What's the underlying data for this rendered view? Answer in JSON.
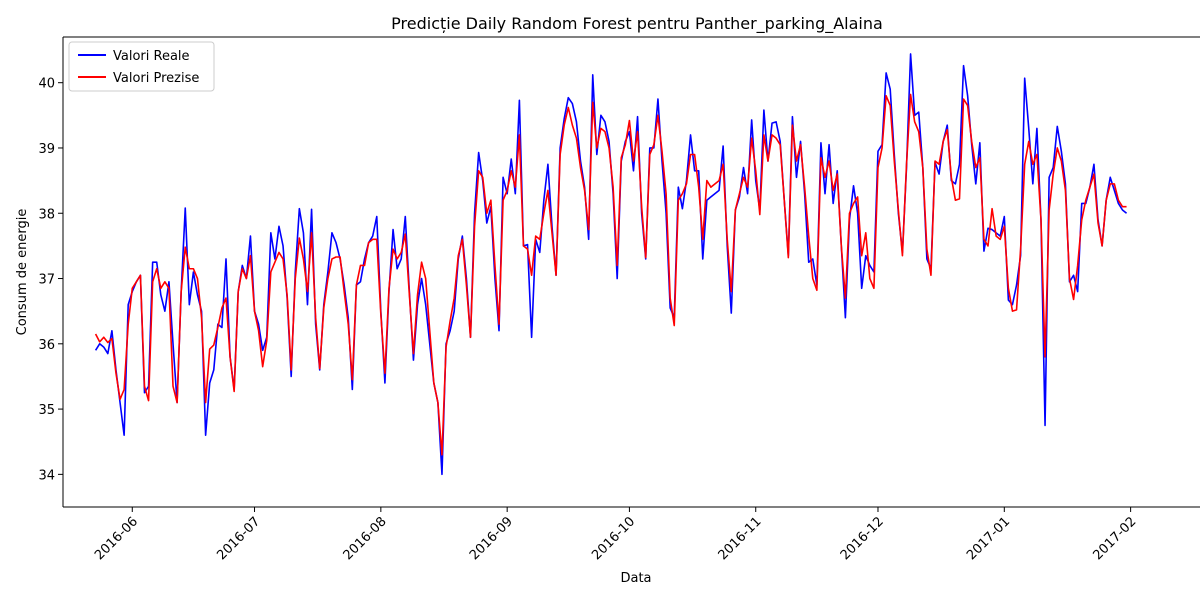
{
  "chart_data": {
    "type": "line",
    "title": "Predicție Daily Random Forest pentru Panther_parking_Alaina",
    "xlabel": "Data",
    "ylabel": "Consum de energie",
    "x_start": "2016-05-23",
    "x_end": "2017-01-27",
    "xlim": [
      "2016-05-15",
      "2017-02-06"
    ],
    "ylim": [
      33.5,
      40.7
    ],
    "x_ticks": [
      "2016-06",
      "2016-07",
      "2016-08",
      "2016-09",
      "2016-10",
      "2016-11",
      "2016-12",
      "2017-01",
      "2017-02"
    ],
    "x_ticks_dates": [
      "2016-06-01",
      "2016-07-01",
      "2016-08-01",
      "2016-09-01",
      "2016-10-01",
      "2016-11-01",
      "2016-12-01",
      "2017-01-01",
      "2017-02-01"
    ],
    "y_ticks": [
      34,
      35,
      36,
      37,
      38,
      39,
      40
    ],
    "grid": false,
    "legend_position": "top-left",
    "series": [
      {
        "name": "Valori Reale",
        "color": "#0000ff",
        "values": [
          35.9,
          36.0,
          35.95,
          35.85,
          36.2,
          35.6,
          35.1,
          34.6,
          36.6,
          36.8,
          36.95,
          37.05,
          35.25,
          35.35,
          37.25,
          37.25,
          36.75,
          36.5,
          36.95,
          36.0,
          35.1,
          36.8,
          38.08,
          36.6,
          37.1,
          36.75,
          36.5,
          34.6,
          35.4,
          35.6,
          36.3,
          36.25,
          37.3,
          35.8,
          35.3,
          36.8,
          37.2,
          37.0,
          37.65,
          36.5,
          36.3,
          35.9,
          36.1,
          37.7,
          37.3,
          37.8,
          37.5,
          36.7,
          35.5,
          37.1,
          38.07,
          37.7,
          36.6,
          38.06,
          36.3,
          35.6,
          36.6,
          37.1,
          37.7,
          37.55,
          37.3,
          36.9,
          36.4,
          35.3,
          36.9,
          36.95,
          37.3,
          37.55,
          37.65,
          37.95,
          36.5,
          35.4,
          36.8,
          37.75,
          37.15,
          37.3,
          37.95,
          36.8,
          35.75,
          36.6,
          37.0,
          36.6,
          36.0,
          35.4,
          35.1,
          34.0,
          36.0,
          36.2,
          36.5,
          37.3,
          37.65,
          37.0,
          36.1,
          38.0,
          38.93,
          38.5,
          37.85,
          38.1,
          37.0,
          36.2,
          38.55,
          38.3,
          38.83,
          38.3,
          39.73,
          37.5,
          37.52,
          36.1,
          37.6,
          37.4,
          38.2,
          38.75,
          37.8,
          37.05,
          39.0,
          39.45,
          39.77,
          39.68,
          39.4,
          38.8,
          38.4,
          37.6,
          40.12,
          38.9,
          39.5,
          39.4,
          39.1,
          38.3,
          37.0,
          38.8,
          39.1,
          39.25,
          38.65,
          39.48,
          38.0,
          37.3,
          39.0,
          39.0,
          39.75,
          38.8,
          38.0,
          36.55,
          36.4,
          38.4,
          38.07,
          38.5,
          39.2,
          38.65,
          38.65,
          37.3,
          38.2,
          38.25,
          38.3,
          38.35,
          39.03,
          37.5,
          36.47,
          38.05,
          38.25,
          38.7,
          38.3,
          39.43,
          38.5,
          38.05,
          39.58,
          38.8,
          39.38,
          39.4,
          39.1,
          38.2,
          37.35,
          39.48,
          38.55,
          39.1,
          38.3,
          37.25,
          37.3,
          36.9,
          39.08,
          38.3,
          39.05,
          38.15,
          38.65,
          37.5,
          36.4,
          37.9,
          38.42,
          38.0,
          36.85,
          37.35,
          37.2,
          37.1,
          38.95,
          39.05,
          40.15,
          39.9,
          38.9,
          38.0,
          37.4,
          38.7,
          40.44,
          39.5,
          39.55,
          38.7,
          37.3,
          37.15,
          38.78,
          38.6,
          39.1,
          39.35,
          38.5,
          38.45,
          38.75,
          40.26,
          39.8,
          39.05,
          38.45,
          39.08,
          37.42,
          37.77,
          37.75,
          37.7,
          37.65,
          37.95,
          36.67,
          36.6,
          36.9,
          37.35,
          40.07,
          39.3,
          38.45,
          39.3,
          37.9,
          34.75,
          38.55,
          38.7,
          39.33,
          38.95,
          38.45,
          36.95,
          37.05,
          36.8,
          38.15,
          38.15,
          38.4,
          38.75,
          37.9,
          37.5,
          38.2,
          38.55,
          38.35,
          38.15,
          38.05,
          38.0
        ]
      },
      {
        "name": "Valori Prezise",
        "color": "#ff0000",
        "values": [
          36.15,
          36.03,
          36.1,
          36.02,
          36.08,
          35.55,
          35.15,
          35.3,
          36.3,
          36.85,
          36.95,
          37.05,
          35.35,
          35.13,
          36.95,
          37.15,
          36.85,
          36.95,
          36.85,
          35.35,
          35.1,
          36.8,
          37.48,
          37.15,
          37.15,
          37.0,
          36.4,
          35.1,
          35.92,
          35.98,
          36.25,
          36.55,
          36.7,
          35.8,
          35.27,
          36.8,
          37.15,
          37.0,
          37.35,
          36.5,
          36.2,
          35.65,
          36.05,
          37.1,
          37.25,
          37.4,
          37.3,
          36.75,
          35.6,
          37.0,
          37.62,
          37.3,
          36.8,
          37.7,
          36.4,
          35.62,
          36.55,
          37.0,
          37.3,
          37.33,
          37.33,
          36.8,
          36.3,
          35.45,
          36.9,
          37.2,
          37.2,
          37.55,
          37.6,
          37.6,
          36.45,
          35.55,
          36.85,
          37.45,
          37.3,
          37.4,
          37.68,
          36.75,
          35.85,
          36.75,
          37.25,
          37.0,
          36.2,
          35.4,
          35.1,
          34.3,
          35.95,
          36.35,
          36.7,
          37.35,
          37.6,
          36.9,
          36.1,
          37.8,
          38.65,
          38.55,
          38.0,
          38.2,
          37.2,
          36.3,
          38.2,
          38.35,
          38.65,
          38.4,
          39.2,
          37.5,
          37.45,
          37.05,
          37.65,
          37.6,
          38.0,
          38.35,
          37.7,
          37.05,
          38.9,
          39.35,
          39.62,
          39.35,
          39.15,
          38.7,
          38.35,
          37.75,
          39.7,
          39.0,
          39.3,
          39.25,
          39.0,
          38.4,
          37.2,
          38.85,
          39.05,
          39.42,
          38.8,
          39.25,
          38.1,
          37.32,
          38.9,
          39.05,
          39.5,
          38.95,
          38.3,
          36.7,
          36.28,
          38.2,
          38.3,
          38.45,
          38.9,
          38.9,
          38.4,
          37.6,
          38.5,
          38.4,
          38.45,
          38.5,
          38.75,
          37.6,
          36.8,
          38.05,
          38.3,
          38.55,
          38.4,
          39.15,
          38.65,
          37.98,
          39.2,
          38.8,
          39.2,
          39.15,
          39.05,
          38.2,
          37.32,
          39.35,
          38.8,
          39.05,
          38.4,
          37.65,
          37.0,
          36.82,
          38.85,
          38.55,
          38.8,
          38.35,
          38.6,
          37.5,
          36.7,
          38.0,
          38.15,
          38.25,
          37.35,
          37.7,
          37.0,
          36.85,
          38.7,
          39.0,
          39.8,
          39.65,
          38.8,
          38.05,
          37.35,
          38.75,
          39.82,
          39.4,
          39.25,
          38.7,
          37.45,
          37.05,
          38.8,
          38.75,
          39.1,
          39.28,
          38.55,
          38.2,
          38.22,
          39.75,
          39.65,
          39.1,
          38.7,
          38.85,
          37.6,
          37.5,
          38.07,
          37.65,
          37.6,
          37.8,
          36.85,
          36.5,
          36.52,
          37.45,
          38.75,
          39.1,
          38.75,
          38.9,
          37.9,
          35.8,
          38.05,
          38.6,
          39.0,
          38.8,
          38.35,
          37.0,
          36.68,
          37.2,
          37.9,
          38.2,
          38.4,
          38.6,
          37.85,
          37.5,
          38.2,
          38.45,
          38.45,
          38.2,
          38.1,
          38.1
        ]
      }
    ]
  }
}
